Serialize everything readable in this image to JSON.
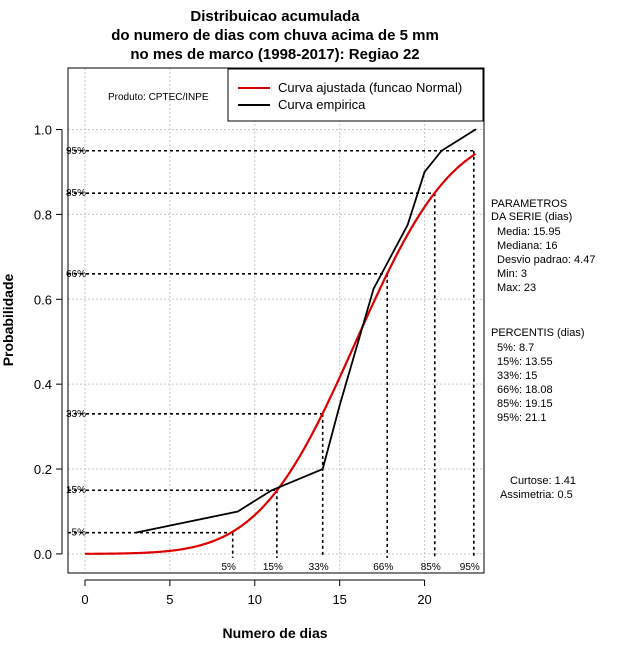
{
  "chart_data": {
    "type": "line",
    "title_lines": [
      "Distribuicao acumulada",
      "do numero de dias com chuva acima de 5 mm",
      "no mes de marco (1998-2017): Regiao 22"
    ],
    "xlabel": "Numero de dias",
    "ylabel": "Probabilidade",
    "xlim": [
      -1,
      23.5
    ],
    "ylim": [
      -0.045,
      1.145
    ],
    "x_ticks": [
      0,
      5,
      10,
      15,
      20
    ],
    "y_ticks": [
      0.0,
      0.2,
      0.4,
      0.6,
      0.8,
      1.0
    ],
    "x_tick_labels": [
      "0",
      "5",
      "10",
      "15",
      "20"
    ],
    "y_tick_labels": [
      "0.0",
      "0.2",
      "0.4",
      "0.6",
      "0.8",
      "1.0"
    ],
    "grid": true,
    "producer": "Produto: CPTEC/INPE",
    "legend_position": "top-right",
    "series": [
      {
        "name": "Curva ajustada (funcao Normal)",
        "color": "#dd0000",
        "kind": "normal_cdf",
        "mean": 15.95,
        "sd": 4.47,
        "x_range": [
          0,
          23
        ]
      },
      {
        "name": "Curva empirica",
        "color": "#000000",
        "kind": "points",
        "x": [
          3,
          9,
          11,
          14,
          15,
          17,
          19,
          20,
          21,
          23
        ],
        "y": [
          0.05,
          0.1,
          0.15,
          0.2,
          0.35,
          0.625,
          0.775,
          0.9,
          0.95,
          1.0
        ]
      }
    ],
    "percentile_guides": [
      {
        "label": "5%",
        "p": 0.05,
        "x": 8.7
      },
      {
        "label": "15%",
        "p": 0.15,
        "x": 11.3
      },
      {
        "label": "33%",
        "p": 0.33,
        "x": 14.0
      },
      {
        "label": "66%",
        "p": 0.66,
        "x": 17.8
      },
      {
        "label": "85%",
        "p": 0.85,
        "x": 20.6
      },
      {
        "label": "95%",
        "p": 0.95,
        "x": 22.9
      }
    ],
    "side_panel": {
      "params_header": [
        "PARAMETROS",
        "DA SERIE (dias)"
      ],
      "params": [
        "Media: 15.95",
        "Mediana: 16",
        "Desvio padrao: 4.47",
        "Min: 3",
        "Max: 23"
      ],
      "percentis_header": "PERCENTIS (dias)",
      "percentis": [
        "5%: 8.7",
        "15%: 13.55",
        "33%: 15",
        "66%: 18.08",
        "85%: 19.15",
        "95%: 21.1"
      ],
      "shape": [
        "Curtose: 1.41",
        "Assimetria: 0.5"
      ]
    }
  }
}
